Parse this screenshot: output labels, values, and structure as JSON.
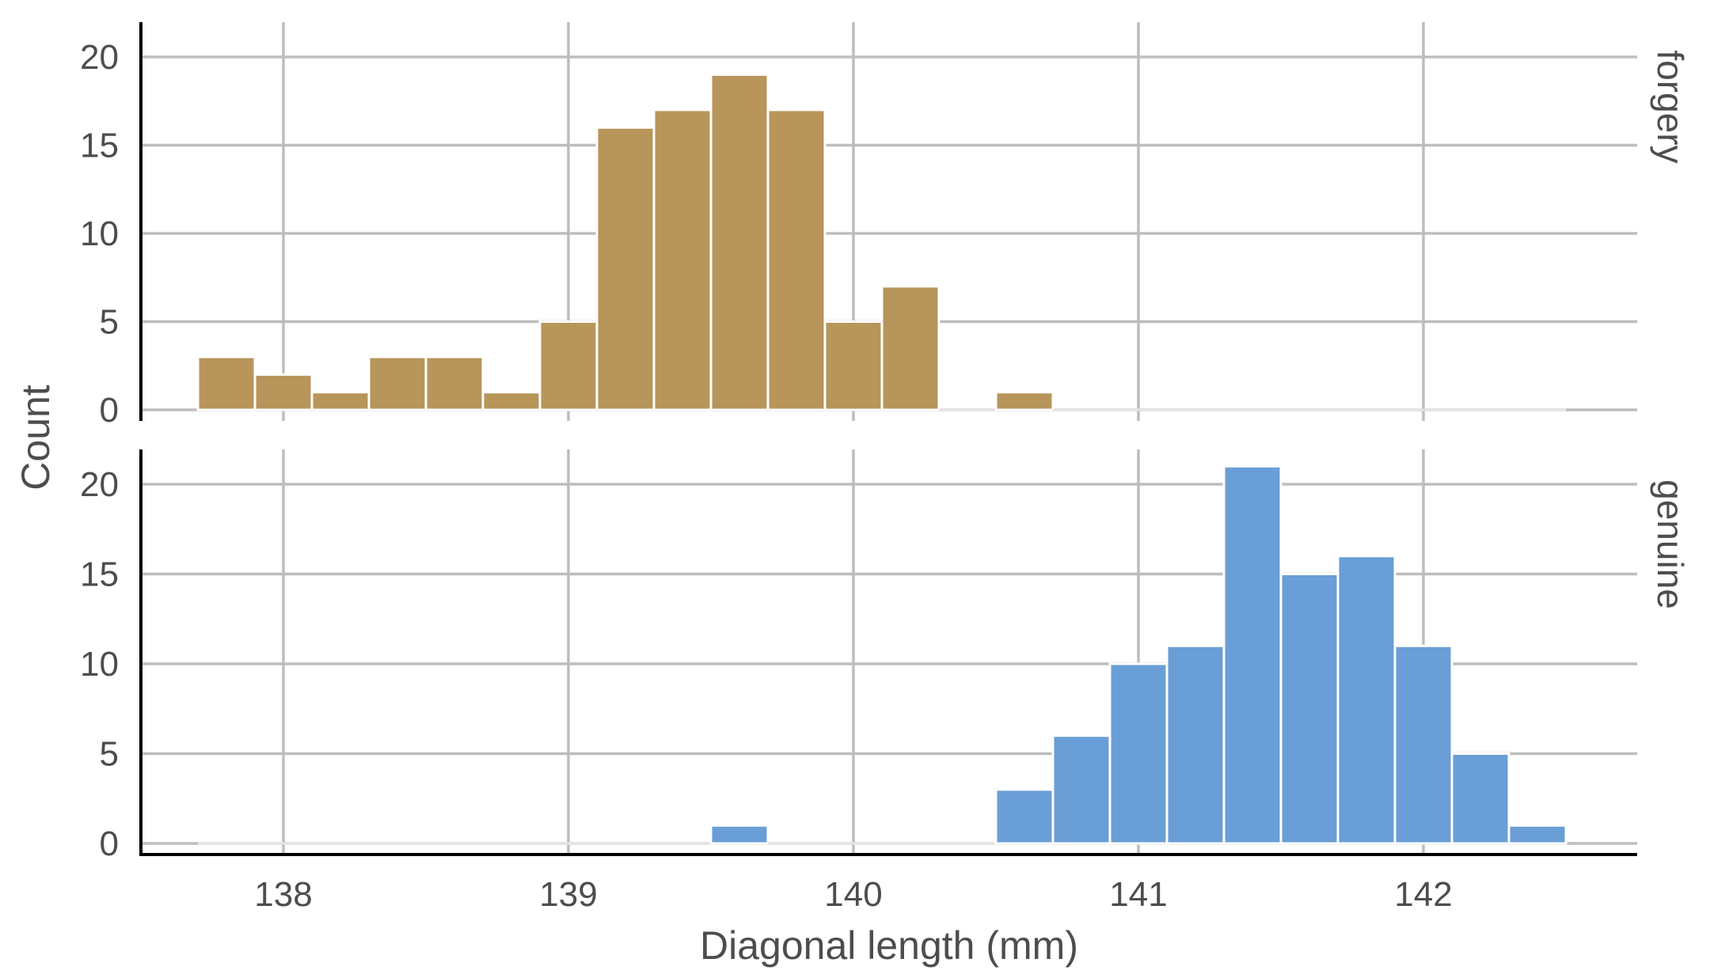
{
  "chart_data": {
    "type": "bar",
    "subtype": "faceted-histogram",
    "xlabel": "Diagonal length (mm)",
    "ylabel": "Count",
    "xlim": [
      137.5,
      142.75
    ],
    "ylim": [
      0,
      22
    ],
    "x_ticks": [
      138,
      139,
      140,
      141,
      142
    ],
    "y_ticks": [
      0,
      5,
      10,
      15,
      20
    ],
    "bin_width": 0.2,
    "bin_starts": [
      137.7,
      137.9,
      138.1,
      138.3,
      138.5,
      138.7,
      138.9,
      139.1,
      139.3,
      139.5,
      139.7,
      139.9,
      140.1,
      140.3,
      140.5,
      140.7,
      140.9,
      141.1,
      141.3,
      141.5,
      141.7,
      141.9,
      142.1,
      142.3
    ],
    "grid": true,
    "facets": [
      {
        "label": "forgery",
        "color": "#B8955A",
        "values": [
          3,
          2,
          1,
          3,
          3,
          1,
          5,
          16,
          17,
          19,
          17,
          5,
          7,
          0,
          1,
          0,
          0,
          0,
          0,
          0,
          0,
          0,
          0,
          0
        ]
      },
      {
        "label": "genuine",
        "color": "#6A9ED6",
        "values": [
          0,
          0,
          0,
          0,
          0,
          0,
          0,
          0,
          0,
          1,
          0,
          0,
          0,
          0,
          3,
          6,
          10,
          11,
          21,
          15,
          16,
          11,
          5,
          1
        ]
      }
    ]
  }
}
